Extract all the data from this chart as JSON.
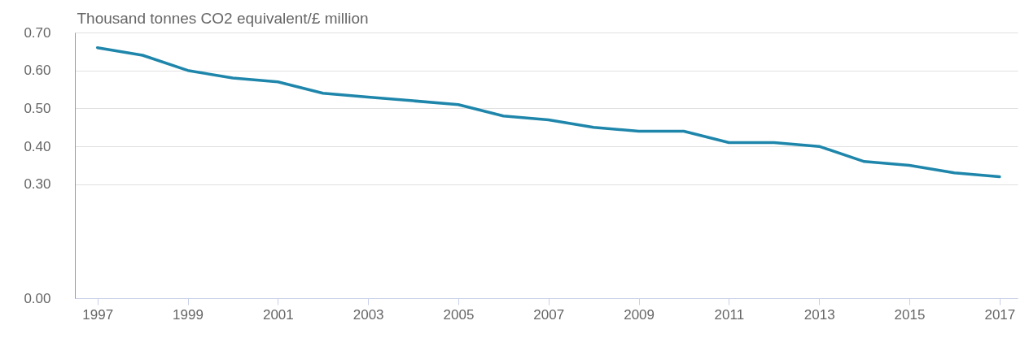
{
  "chart_data": {
    "type": "line",
    "ylabel": "Thousand tonnes CO2 equivalent/£ million",
    "x": [
      1997,
      1998,
      1999,
      2000,
      2001,
      2002,
      2003,
      2004,
      2005,
      2006,
      2007,
      2008,
      2009,
      2010,
      2011,
      2012,
      2013,
      2014,
      2015,
      2016,
      2017
    ],
    "series": [
      {
        "color": "#1f86ab",
        "values": [
          0.66,
          0.64,
          0.6,
          0.58,
          0.57,
          0.54,
          0.53,
          0.52,
          0.51,
          0.48,
          0.47,
          0.45,
          0.44,
          0.44,
          0.41,
          0.41,
          0.4,
          0.36,
          0.35,
          0.33,
          0.32
        ]
      }
    ],
    "xlim": [
      1996.5,
      2017.4
    ],
    "xticks": [
      1997,
      1999,
      2001,
      2003,
      2005,
      2007,
      2009,
      2011,
      2013,
      2015,
      2017
    ],
    "ylim": [
      0,
      0.7
    ],
    "yticks": [
      {
        "value": 0,
        "label": "0.00"
      },
      {
        "value": 0.3,
        "label": "0.30"
      },
      {
        "value": 0.4,
        "label": "0.40"
      },
      {
        "value": 0.5,
        "label": "0.50"
      },
      {
        "value": 0.6,
        "label": "0.60"
      },
      {
        "value": 0.7,
        "label": "0.70"
      }
    ],
    "grid": "y",
    "marker": "none",
    "line_style": "solid"
  }
}
